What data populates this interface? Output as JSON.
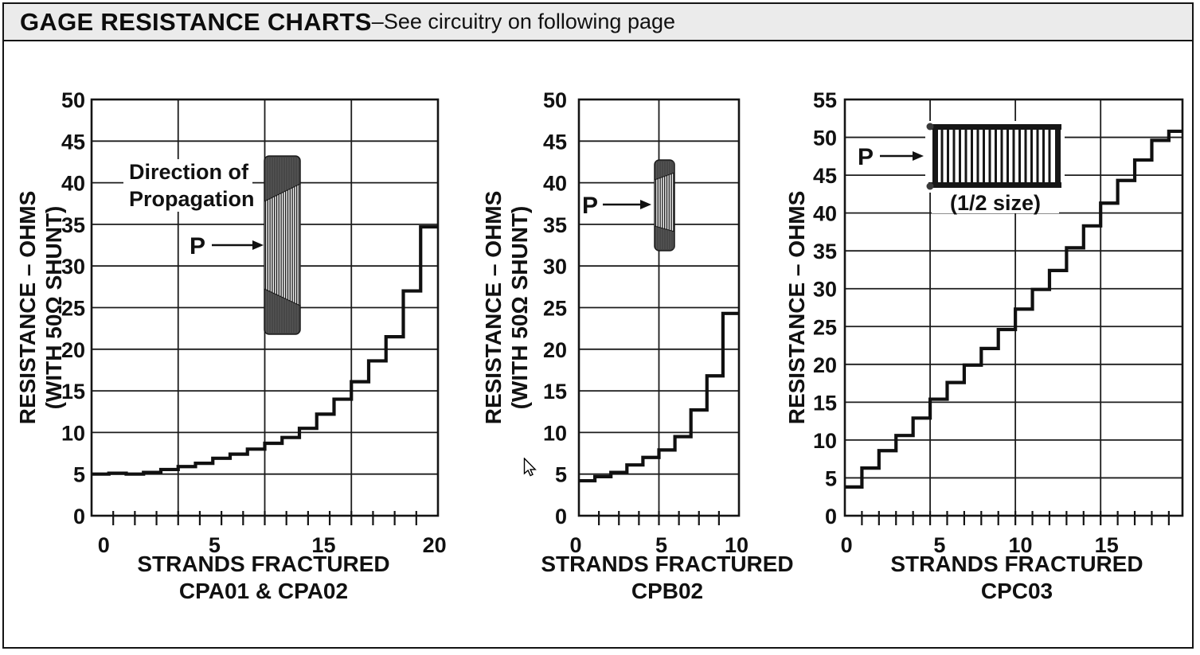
{
  "header": {
    "title": "GAGE RESISTANCE CHARTS",
    "dash": "–",
    "subtitle": "See circuitry on following page"
  },
  "colors": {
    "ink": "#111111",
    "titlebar_bg": "#ebebeb",
    "page_bg": "#ffffff"
  },
  "chart_data": [
    {
      "type": "line",
      "subtype": "step",
      "title": "",
      "xlabel_line1": "STRANDS FRACTURED",
      "xlabel_line2": "CPA01 & CPA02",
      "ylabel_line1": "RESISTANCE – OHMS",
      "ylabel_line2": "(WITH 50Ω SHUNT)",
      "xlim": [
        0,
        20
      ],
      "ylim": [
        0,
        50
      ],
      "y_tick_step": 5,
      "y_tick_labels": [
        "0",
        "5",
        "10",
        "15",
        "20",
        "25",
        "30",
        "35",
        "40",
        "45",
        "50"
      ],
      "x_tick_labels": [
        {
          "text": "0",
          "at": 0.7
        },
        {
          "text": "5",
          "at": 7.1
        },
        {
          "text": "15",
          "at": 13.4
        },
        {
          "text": "20",
          "at": 19.8
        }
      ],
      "x_gridlines": [
        5,
        10,
        15
      ],
      "x_minor_tick_step": 1.25,
      "grid": true,
      "series": [
        {
          "name": "CPA01 & CPA02",
          "x_step": 1,
          "levels": [
            5.0,
            5.1,
            5.0,
            5.2,
            5.55,
            5.9,
            6.3,
            6.9,
            7.4,
            8.0,
            8.7,
            9.4,
            10.5,
            12.2,
            14.0,
            16.1,
            18.6,
            21.5,
            27.0,
            34.7
          ]
        }
      ],
      "inset": {
        "label_line1": "Direction of",
        "label_line2": "Propagation",
        "pointer_label": "P",
        "gage_type": "vertical-crack-propagation-gage"
      }
    },
    {
      "type": "line",
      "subtype": "step",
      "title": "",
      "xlabel_line1": "STRANDS FRACTURED",
      "xlabel_line2": "CPB02",
      "ylabel_line1": "RESISTANCE – OHMS",
      "ylabel_line2": "(WITH 50Ω SHUNT)",
      "xlim": [
        0,
        10
      ],
      "ylim": [
        0,
        50
      ],
      "y_tick_step": 5,
      "y_tick_labels": [
        "0",
        "5",
        "10",
        "15",
        "20",
        "25",
        "30",
        "35",
        "40",
        "45",
        "50"
      ],
      "x_tick_labels": [
        {
          "text": "0",
          "at": -0.2
        },
        {
          "text": "5",
          "at": 5.15
        },
        {
          "text": "10",
          "at": 9.85
        }
      ],
      "x_gridlines": [
        5
      ],
      "x_minor_tick_step": 1.25,
      "grid": true,
      "series": [
        {
          "name": "CPB02",
          "x_step": 1,
          "levels": [
            4.2,
            4.7,
            5.2,
            6.1,
            7.0,
            7.9,
            9.5,
            12.7,
            16.8,
            24.3
          ]
        }
      ],
      "inset": {
        "pointer_label": "P",
        "gage_type": "vertical-crack-propagation-gage-small"
      }
    },
    {
      "type": "line",
      "subtype": "step",
      "title": "",
      "xlabel_line1": "STRANDS FRACTURED",
      "xlabel_line2": "CPC03",
      "ylabel_line1": "RESISTANCE – OHMS",
      "ylabel_line2": "",
      "xlim": [
        0,
        19.8
      ],
      "ylim": [
        0,
        55
      ],
      "y_tick_step": 5,
      "y_tick_labels": [
        "0",
        "5",
        "10",
        "15",
        "20",
        "25",
        "30",
        "35",
        "40",
        "45",
        "50",
        "55"
      ],
      "x_tick_labels": [
        {
          "text": "0",
          "at": 0.1
        },
        {
          "text": "5",
          "at": 5.55
        },
        {
          "text": "10",
          "at": 10.3
        },
        {
          "text": "15",
          "at": 15.35
        }
      ],
      "x_gridlines": [
        5,
        10,
        15
      ],
      "x_minor_tick_step": 1,
      "grid": true,
      "series": [
        {
          "name": "CPC03",
          "x_step": 1,
          "levels": [
            3.8,
            6.3,
            8.6,
            10.6,
            12.9,
            15.4,
            17.6,
            19.9,
            22.1,
            24.6,
            27.3,
            29.9,
            32.4,
            35.4,
            38.3,
            41.3,
            44.3,
            47.0,
            49.6,
            50.8
          ]
        }
      ],
      "inset": {
        "pointer_label": "P",
        "size_note": "(1/2 size)",
        "gage_type": "horizontal-crack-propagation-gage"
      }
    }
  ]
}
